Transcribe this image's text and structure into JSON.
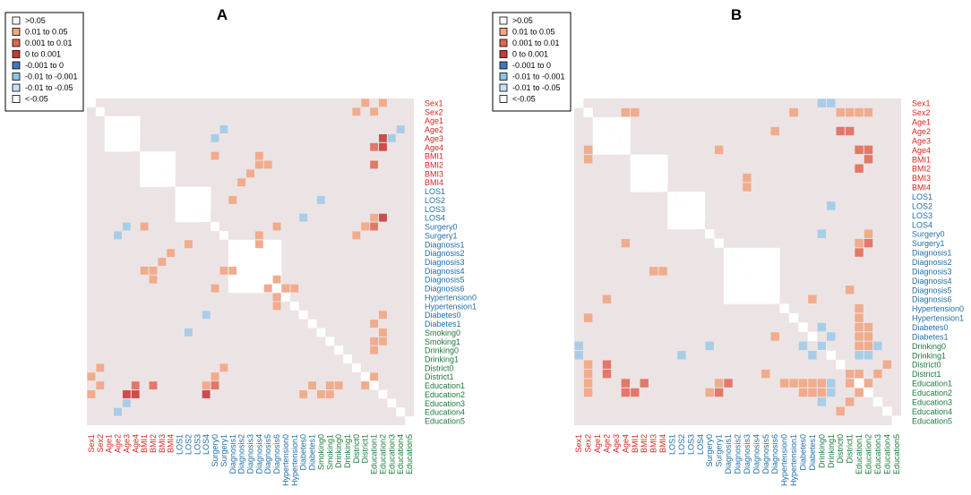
{
  "chart_data": [
    {
      "type": "heatmap",
      "title": "A",
      "labels": [
        "Sex1",
        "Sex2",
        "Age1",
        "Age2",
        "Age3",
        "Age4",
        "BMI1",
        "BMI2",
        "BMI3",
        "BMI4",
        "LOS1",
        "LOS2",
        "LOS3",
        "LOS4",
        "Surgery0",
        "Surgery1",
        "Diagnosis1",
        "Diagnosis2",
        "Diagnosis3",
        "Diagnosis4",
        "Diagnosis5",
        "Diagnosis6",
        "Hypertension0",
        "Hypertension1",
        "Diabetes0",
        "Diabetes1",
        "Smoking0",
        "Smoking1",
        "Drinking0",
        "Drinking1",
        "District0",
        "District1",
        "Education1",
        "Education2",
        "Education3",
        "Education4",
        "Education5"
      ],
      "label_groups": [
        "red",
        "red",
        "red",
        "red",
        "red",
        "red",
        "red",
        "red",
        "red",
        "red",
        "blue",
        "blue",
        "blue",
        "blue",
        "blue",
        "blue",
        "blue",
        "blue",
        "blue",
        "blue",
        "blue",
        "blue",
        "blue",
        "blue",
        "blue",
        "blue",
        "green",
        "green",
        "green",
        "green",
        "green",
        "green",
        "green",
        "green",
        "green",
        "green",
        "green"
      ],
      "legend": [
        ">0.05",
        "0.01 to 0.05",
        "0.001 to 0.01",
        "0 to 0.001",
        "-0.001 to 0",
        "-0.01 to -0.001",
        "-0.01 to -0.05",
        "<-0.05"
      ],
      "white_blocks": [
        [
          2,
          5
        ],
        [
          6,
          9
        ],
        [
          10,
          13
        ],
        [
          16,
          21
        ]
      ],
      "cells": [
        [
          0,
          31,
          "0.01 to 0.05"
        ],
        [
          0,
          33,
          "0.01 to 0.05"
        ],
        [
          3,
          15,
          "-0.01 to -0.001"
        ],
        [
          3,
          35,
          "-0.01 to -0.001"
        ],
        [
          4,
          33,
          "0 to 0.001"
        ],
        [
          5,
          33,
          "0 to 0.001"
        ],
        [
          6,
          19,
          "0.01 to 0.05"
        ],
        [
          7,
          20,
          "0.01 to 0.05"
        ],
        [
          9,
          17,
          "0.01 to 0.05"
        ],
        [
          11,
          26,
          "-0.01 to -0.001"
        ],
        [
          13,
          32,
          "0.01 to 0.05"
        ],
        [
          13,
          33,
          "0 to 0.001"
        ],
        [
          14,
          4,
          "-0.01 to -0.001"
        ],
        [
          14,
          6,
          "0.01 to 0.05"
        ],
        [
          14,
          21,
          "0.01 to 0.05"
        ],
        [
          14,
          31,
          "0.01 to 0.05"
        ],
        [
          16,
          11,
          "0.01 to 0.05"
        ],
        [
          16,
          19,
          "0.01 to 0.05"
        ],
        [
          18,
          8,
          "0.01 to 0.05"
        ],
        [
          19,
          7,
          "0.01 to 0.05"
        ],
        [
          19,
          15,
          "0.01 to 0.05"
        ],
        [
          20,
          21,
          "0.01 to 0.05"
        ],
        [
          21,
          22,
          "0.01 to 0.05"
        ],
        [
          22,
          21,
          "0.01 to 0.05"
        ],
        [
          23,
          21,
          "0.01 to 0.05"
        ],
        [
          24,
          13,
          "-0.01 to -0.001"
        ],
        [
          24,
          33,
          "0.01 to 0.05"
        ],
        [
          26,
          33,
          "0.01 to 0.05"
        ],
        [
          27,
          33,
          "0.01 to 0.05"
        ],
        [
          30,
          1,
          "0.01 to 0.05"
        ],
        [
          30,
          15,
          "0.01 to 0.05"
        ],
        [
          31,
          14,
          "0.01 to 0.05"
        ],
        [
          32,
          1,
          "0.01 to 0.05"
        ],
        [
          32,
          5,
          "0.001 to 0.01"
        ],
        [
          32,
          7,
          "0.001 to 0.01"
        ],
        [
          32,
          14,
          "0.001 to 0.01"
        ],
        [
          32,
          25,
          "0.01 to 0.05"
        ],
        [
          32,
          27,
          "0.01 to 0.05"
        ],
        [
          32,
          28,
          "0.01 to 0.05"
        ],
        [
          32,
          31,
          "0.01 to 0.05"
        ],
        [
          34,
          4,
          "-0.01 to -0.001"
        ]
      ]
    },
    {
      "type": "heatmap",
      "title": "B",
      "labels": [
        "Sex1",
        "Sex2",
        "Age1",
        "Age2",
        "Age3",
        "Age4",
        "BMI1",
        "BMI2",
        "BMI3",
        "BMI4",
        "LOS1",
        "LOS2",
        "LOS3",
        "LOS4",
        "Surgery0",
        "Surgery1",
        "Diagnosis1",
        "Diagnosis2",
        "Diagnosis3",
        "Diagnosis4",
        "Diagnosis5",
        "Diagnosis6",
        "Hypertension0",
        "Hypertension1",
        "Diabetes0",
        "Diabetes1",
        "Drinking0",
        "Drinking1",
        "District0",
        "District1",
        "Education1",
        "Education2",
        "Education3",
        "Education4",
        "Education5"
      ],
      "label_groups": [
        "red",
        "red",
        "red",
        "red",
        "red",
        "red",
        "red",
        "red",
        "red",
        "red",
        "blue",
        "blue",
        "blue",
        "blue",
        "blue",
        "blue",
        "blue",
        "blue",
        "blue",
        "blue",
        "blue",
        "blue",
        "blue",
        "blue",
        "blue",
        "blue",
        "green",
        "green",
        "green",
        "green",
        "green",
        "green",
        "green",
        "green",
        "green"
      ],
      "legend": [
        ">0.05",
        "0.01 to 0.05",
        "0.001 to 0.01",
        "0 to 0.001",
        "-0.001 to 0",
        "-0.01 to -0.001",
        "-0.01 to -0.05",
        "<-0.05"
      ],
      "white_blocks": [
        [
          2,
          5
        ],
        [
          6,
          9
        ],
        [
          10,
          13
        ],
        [
          16,
          21
        ]
      ],
      "cells": [
        [
          0,
          27,
          "-0.01 to -0.001"
        ],
        [
          1,
          6,
          "0.01 to 0.05"
        ],
        [
          1,
          23,
          "0.01 to 0.05"
        ],
        [
          1,
          29,
          "0.01 to 0.05"
        ],
        [
          1,
          31,
          "0.01 to 0.05"
        ],
        [
          3,
          21,
          "0.01 to 0.05"
        ],
        [
          3,
          29,
          "0.001 to 0.01"
        ],
        [
          5,
          1,
          "0.01 to 0.05"
        ],
        [
          5,
          15,
          "0.01 to 0.05"
        ],
        [
          5,
          31,
          "0.001 to 0.01"
        ],
        [
          6,
          31,
          "0.001 to 0.01"
        ],
        [
          8,
          18,
          "0.01 to 0.05"
        ],
        [
          11,
          27,
          "-0.01 to -0.001"
        ],
        [
          14,
          31,
          "0.01 to 0.05"
        ],
        [
          15,
          31,
          "0.001 to 0.01"
        ],
        [
          18,
          9,
          "0.01 to 0.05"
        ],
        [
          20,
          29,
          "0.01 to 0.05"
        ],
        [
          23,
          1,
          "0.01 to 0.05"
        ],
        [
          24,
          31,
          "0.01 to 0.05"
        ],
        [
          25,
          21,
          "0.01 to 0.05"
        ],
        [
          25,
          27,
          "-0.01 to -0.001"
        ],
        [
          25,
          31,
          "0.01 to 0.05"
        ],
        [
          26,
          0,
          "-0.01 to -0.001"
        ],
        [
          26,
          14,
          "-0.01 to -0.001"
        ],
        [
          26,
          24,
          "-0.01 to -0.001"
        ],
        [
          26,
          26,
          "-0.01 to -0.001"
        ],
        [
          26,
          31,
          "0.01 to 0.05"
        ],
        [
          26,
          32,
          "-0.01 to -0.001"
        ],
        [
          28,
          1,
          "0.01 to 0.05"
        ],
        [
          28,
          3,
          "0.001 to 0.01"
        ],
        [
          28,
          33,
          "0.01 to 0.05"
        ],
        [
          29,
          29,
          "0.01 to 0.05"
        ],
        [
          30,
          1,
          "0.01 to 0.05"
        ],
        [
          30,
          5,
          "0.001 to 0.01"
        ],
        [
          30,
          7,
          "0.001 to 0.01"
        ],
        [
          30,
          15,
          "0.01 to 0.05"
        ],
        [
          30,
          16,
          "0.001 to 0.01"
        ],
        [
          30,
          22,
          "0.01 to 0.05"
        ],
        [
          30,
          23,
          "0.01 to 0.05"
        ],
        [
          30,
          24,
          "0.01 to 0.05"
        ],
        [
          30,
          25,
          "0.01 to 0.05"
        ],
        [
          30,
          26,
          "0.01 to 0.05"
        ],
        [
          30,
          27,
          "-0.01 to -0.001"
        ],
        [
          30,
          29,
          "0.01 to 0.05"
        ],
        [
          30,
          31,
          "0.01 to 0.05"
        ],
        [
          31,
          27,
          "-0.01 to -0.001"
        ],
        [
          32,
          29,
          "0.01 to 0.05"
        ]
      ]
    }
  ],
  "colors": {
    "background_cell": "#ece4e4",
    "white": "#ffffff",
    "label_red": "#d7261f",
    "label_blue": "#1f6ea8",
    "label_green": "#1a7a3c",
    "legend_fills": [
      "#ffffff",
      "#f4a582",
      "#e0664f",
      "#c43b3b",
      "#3f78c2",
      "#8ec2e5",
      "#c6e2f3",
      "#ffffff"
    ],
    "cell_fills": {
      "0.01 to 0.05": "#f1ab8d",
      "0.001 to 0.01": "#e2776a",
      "0 to 0.001": "#cd4c4c",
      "-0.001 to 0": "#3f78c2",
      "-0.01 to -0.001": "#a8cde7",
      "-0.01 to -0.05": "#c9e1f2",
      "<-0.05": "#ffffff",
      ">0.05": "#ffffff"
    }
  }
}
